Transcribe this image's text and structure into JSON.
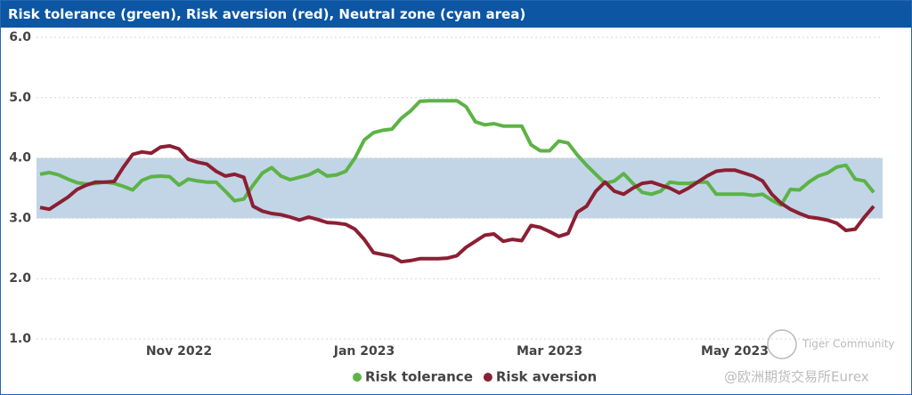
{
  "chart_data": {
    "type": "line",
    "title": "Risk tolerance (green), Risk aversion (red), Neutral zone (cyan area)",
    "categories": [
      null,
      null,
      null,
      null,
      null,
      null,
      null,
      null,
      null,
      null,
      null,
      null,
      null,
      null,
      null,
      "Nov 2022",
      null,
      null,
      null,
      null,
      null,
      null,
      null,
      null,
      null,
      null,
      null,
      null,
      null,
      null,
      null,
      null,
      null,
      null,
      null,
      "Jan 2023",
      null,
      null,
      null,
      null,
      null,
      null,
      null,
      null,
      null,
      null,
      null,
      null,
      null,
      null,
      null,
      null,
      null,
      null,
      null,
      "Mar 2023",
      null,
      null,
      null,
      null,
      null,
      null,
      null,
      null,
      null,
      null,
      null,
      null,
      null,
      null,
      null,
      null,
      null,
      null,
      null,
      "May 2023",
      null,
      null,
      null,
      null,
      null,
      null,
      null,
      null,
      null,
      null,
      null,
      null,
      null,
      null,
      null
    ],
    "series": [
      {
        "name": "Risk tolerance",
        "color": "#5cb346",
        "values": [
          3.73,
          3.76,
          3.72,
          3.65,
          3.59,
          3.57,
          3.58,
          3.6,
          3.58,
          3.53,
          3.47,
          3.63,
          3.69,
          3.7,
          3.69,
          3.55,
          3.65,
          3.62,
          3.6,
          3.6,
          3.45,
          3.29,
          3.32,
          3.55,
          3.75,
          3.84,
          3.7,
          3.64,
          3.68,
          3.72,
          3.8,
          3.7,
          3.72,
          3.78,
          4.0,
          4.3,
          4.42,
          4.46,
          4.48,
          4.66,
          4.78,
          4.94,
          4.95,
          4.95,
          4.95,
          4.95,
          4.85,
          4.6,
          4.55,
          4.57,
          4.53,
          4.53,
          4.53,
          4.22,
          4.12,
          4.12,
          4.28,
          4.25,
          4.05,
          3.88,
          3.73,
          3.58,
          3.62,
          3.74,
          3.58,
          3.43,
          3.4,
          3.45,
          3.6,
          3.58,
          3.58,
          3.6,
          3.6,
          3.4,
          3.4,
          3.4,
          3.4,
          3.38,
          3.4,
          3.3,
          3.22,
          3.48,
          3.47,
          3.6,
          3.7,
          3.75,
          3.85,
          3.88,
          3.65,
          3.62,
          3.43
        ]
      },
      {
        "name": "Risk aversion",
        "color": "#8b1f33",
        "values": [
          3.18,
          3.15,
          3.25,
          3.35,
          3.48,
          3.55,
          3.6,
          3.6,
          3.61,
          3.85,
          4.06,
          4.1,
          4.08,
          4.18,
          4.2,
          4.15,
          3.98,
          3.93,
          3.9,
          3.78,
          3.7,
          3.73,
          3.68,
          3.2,
          3.12,
          3.08,
          3.06,
          3.02,
          2.97,
          3.02,
          2.98,
          2.93,
          2.92,
          2.9,
          2.82,
          2.65,
          2.43,
          2.4,
          2.37,
          2.28,
          2.3,
          2.33,
          2.33,
          2.33,
          2.34,
          2.38,
          2.52,
          2.62,
          2.72,
          2.74,
          2.62,
          2.65,
          2.63,
          2.88,
          2.85,
          2.78,
          2.7,
          2.75,
          3.1,
          3.2,
          3.45,
          3.6,
          3.45,
          3.4,
          3.5,
          3.58,
          3.6,
          3.55,
          3.5,
          3.42,
          3.5,
          3.6,
          3.7,
          3.78,
          3.8,
          3.8,
          3.75,
          3.7,
          3.62,
          3.4,
          3.25,
          3.15,
          3.08,
          3.02,
          3.0,
          2.97,
          2.92,
          2.8,
          2.82,
          3.02,
          3.2
        ]
      }
    ],
    "band": {
      "from": 3,
      "to": 4,
      "color": "#c1d5e7"
    },
    "ylim": [
      1,
      6.0
    ],
    "yticks": [
      {
        "value": 1,
        "label": "1.0"
      },
      {
        "value": 2,
        "label": "2.0"
      },
      {
        "value": 3,
        "label": "3.0"
      },
      {
        "value": 4,
        "label": "4.0"
      },
      {
        "value": 5,
        "label": "5.0"
      },
      {
        "value": 6,
        "label": "6.0"
      }
    ],
    "grid": true,
    "legend": "bottom",
    "watermark": [
      "Tiger Community",
      "@欧洲期货交易所Eurex"
    ]
  }
}
